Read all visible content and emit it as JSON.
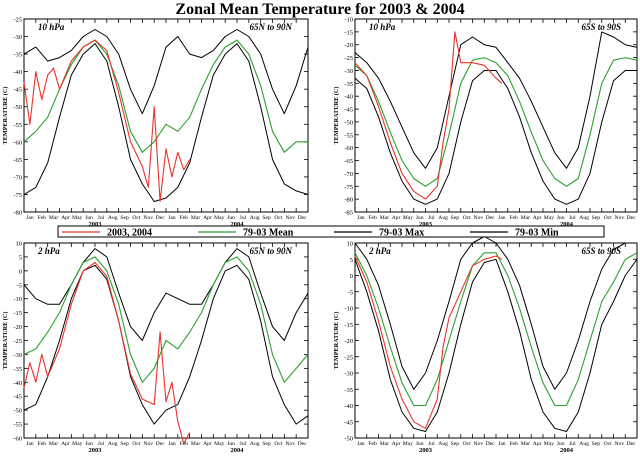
{
  "figure": {
    "title": "Zonal Mean Temperature for 2003 & 2004",
    "legend": [
      {
        "label": "2003, 2004",
        "color": "#e8332c"
      },
      {
        "label": "79-03 Mean",
        "color": "#2ca02c"
      },
      {
        "label": "79-03 Max",
        "color": "#000000"
      },
      {
        "label": "79-03 Min",
        "color": "#000000"
      }
    ]
  },
  "chart_data": [
    {
      "type": "line",
      "level": "10 hPa",
      "region": "65N to 90N",
      "ylabel": "TEMPERATURE (C)",
      "ylim": [
        -80,
        -25
      ],
      "yticks": [
        -80,
        -75,
        -70,
        -65,
        -60,
        -55,
        -50,
        -45,
        -40,
        -35,
        -30,
        -25
      ],
      "month_ticks": [
        "Jan",
        "Feb",
        "Mar",
        "Apr",
        "May",
        "Jun",
        "Jul",
        "Aug",
        "Sep",
        "Oct",
        "Nov",
        "Dec",
        "Jan",
        "Feb",
        "Mar",
        "Apr",
        "May",
        "Jun",
        "Jul",
        "Aug",
        "Sep",
        "Oct",
        "Nov",
        "Dec"
      ],
      "years": [
        "2003",
        "2004"
      ],
      "series": [
        {
          "name": "79-03 Max",
          "color": "#000000",
          "x": [
            0,
            1,
            2,
            3,
            4,
            5,
            6,
            7,
            8,
            9,
            10,
            11,
            12,
            13,
            14,
            15,
            16,
            17,
            18,
            19,
            20,
            21,
            22,
            23,
            24
          ],
          "values": [
            -35,
            -33,
            -37,
            -36,
            -34,
            -30,
            -28,
            -30,
            -35,
            -45,
            -52,
            -44,
            -33,
            -30,
            -35,
            -36,
            -34,
            -30,
            -28,
            -30,
            -35,
            -45,
            -52,
            -44,
            -33
          ]
        },
        {
          "name": "79-03 Mean",
          "color": "#2ca02c",
          "x": [
            0,
            1,
            2,
            3,
            4,
            5,
            6,
            7,
            8,
            9,
            10,
            11,
            12,
            13,
            14,
            15,
            16,
            17,
            18,
            19,
            20,
            21,
            22,
            23,
            24
          ],
          "values": [
            -60,
            -57,
            -53,
            -45,
            -38,
            -33,
            -31,
            -35,
            -44,
            -57,
            -63,
            -60,
            -55,
            -57,
            -53,
            -45,
            -38,
            -33,
            -31,
            -35,
            -44,
            -57,
            -63,
            -60,
            -60
          ]
        },
        {
          "name": "79-03 Min",
          "color": "#000000",
          "x": [
            0,
            1,
            2,
            3,
            4,
            5,
            6,
            7,
            8,
            9,
            10,
            11,
            12,
            13,
            14,
            15,
            16,
            17,
            18,
            19,
            20,
            21,
            22,
            23,
            24
          ],
          "values": [
            -75,
            -73,
            -66,
            -53,
            -41,
            -35,
            -32,
            -37,
            -50,
            -65,
            -72,
            -77,
            -76,
            -73,
            -66,
            -53,
            -41,
            -35,
            -32,
            -37,
            -50,
            -65,
            -72,
            -74,
            -75
          ]
        },
        {
          "name": "2003, 2004",
          "color": "#e8332c",
          "x": [
            0,
            0.5,
            1,
            1.5,
            2,
            2.5,
            3,
            4,
            5,
            6,
            7,
            8,
            9,
            10,
            10.5,
            11,
            11.5,
            12,
            12.5,
            13,
            13.5,
            14
          ],
          "values": [
            -43,
            -55,
            -40,
            -48,
            -41,
            -39,
            -45,
            -37,
            -33,
            -31,
            -34,
            -46,
            -60,
            -67,
            -73,
            -50,
            -77,
            -62,
            -70,
            -63,
            -68,
            -65
          ]
        }
      ]
    },
    {
      "type": "line",
      "level": "10 hPa",
      "region": "65S to 90S",
      "ylabel": "TEMPERATURE (C)",
      "ylim": [
        -85,
        -10
      ],
      "yticks": [
        -85,
        -80,
        -75,
        -70,
        -65,
        -60,
        -55,
        -50,
        -45,
        -40,
        -35,
        -30,
        -25,
        -20,
        -15,
        -10
      ],
      "month_ticks": [
        "Jan",
        "Feb",
        "Mar",
        "Apr",
        "May",
        "Jun",
        "Jul",
        "Aug",
        "Sep",
        "Oct",
        "Nov",
        "Dec",
        "Jan",
        "Feb",
        "Mar",
        "Apr",
        "May",
        "Jun",
        "Jul",
        "Aug",
        "Sep",
        "Oct",
        "Nov",
        "Dec"
      ],
      "years": [
        "2003",
        "2004"
      ],
      "series": [
        {
          "name": "79-03 Max",
          "color": "#000000",
          "x": [
            0,
            1,
            2,
            3,
            4,
            5,
            6,
            7,
            8,
            9,
            10,
            11,
            12,
            13,
            14,
            15,
            16,
            17,
            18,
            19,
            20,
            21,
            22,
            23,
            24
          ],
          "values": [
            -23,
            -27,
            -33,
            -42,
            -52,
            -62,
            -68,
            -60,
            -40,
            -20,
            -17,
            -20,
            -21,
            -27,
            -33,
            -42,
            -52,
            -62,
            -68,
            -60,
            -40,
            -15,
            -17,
            -20,
            -21
          ]
        },
        {
          "name": "79-03 Mean",
          "color": "#2ca02c",
          "x": [
            0,
            1,
            2,
            3,
            4,
            5,
            6,
            7,
            8,
            9,
            10,
            11,
            12,
            13,
            14,
            15,
            16,
            17,
            18,
            19,
            20,
            21,
            22,
            23,
            24
          ],
          "values": [
            -28,
            -32,
            -42,
            -54,
            -65,
            -72,
            -75,
            -72,
            -55,
            -35,
            -26,
            -25,
            -27,
            -32,
            -42,
            -54,
            -65,
            -72,
            -75,
            -72,
            -55,
            -35,
            -26,
            -25,
            -26
          ]
        },
        {
          "name": "79-03 Min",
          "color": "#000000",
          "x": [
            0,
            1,
            2,
            3,
            4,
            5,
            6,
            7,
            8,
            9,
            10,
            11,
            12,
            13,
            14,
            15,
            16,
            17,
            18,
            19,
            20,
            21,
            22,
            23,
            24
          ],
          "values": [
            -33,
            -37,
            -48,
            -62,
            -73,
            -80,
            -82,
            -80,
            -70,
            -50,
            -34,
            -30,
            -30,
            -37,
            -48,
            -62,
            -73,
            -80,
            -82,
            -80,
            -70,
            -50,
            -34,
            -30,
            -30
          ]
        },
        {
          "name": "2003, 2004",
          "color": "#e8332c",
          "x": [
            0,
            1,
            2,
            3,
            4,
            5,
            6,
            7,
            7.5,
            8,
            8.5,
            9,
            10,
            11,
            12,
            12.5
          ],
          "values": [
            -27,
            -32,
            -44,
            -58,
            -70,
            -77,
            -80,
            -75,
            -58,
            -45,
            -15,
            -27,
            -27,
            -28,
            -33,
            -35
          ]
        }
      ]
    },
    {
      "type": "line",
      "level": "2 hPa",
      "region": "65N to 90N",
      "ylabel": "TEMPERATURE (C)",
      "ylim": [
        -60,
        10
      ],
      "yticks": [
        -60,
        -55,
        -50,
        -45,
        -40,
        -35,
        -30,
        -25,
        -20,
        -15,
        -10,
        -5,
        0,
        5,
        10
      ],
      "month_ticks": [
        "Jan",
        "Feb",
        "Mar",
        "Apr",
        "May",
        "Jun",
        "Jul",
        "Aug",
        "Sep",
        "Oct",
        "Nov",
        "Dec",
        "Jan",
        "Feb",
        "Mar",
        "Apr",
        "May",
        "Jun",
        "Jul",
        "Aug",
        "Sep",
        "Oct",
        "Nov",
        "Dec"
      ],
      "years": [
        "2003",
        "2004"
      ],
      "series": [
        {
          "name": "79-03 Max",
          "color": "#000000",
          "x": [
            0,
            1,
            2,
            3,
            4,
            5,
            6,
            7,
            8,
            9,
            10,
            11,
            12,
            13,
            14,
            15,
            16,
            17,
            18,
            19,
            20,
            21,
            22,
            23,
            24
          ],
          "values": [
            -5,
            -10,
            -12,
            -12,
            -5,
            3,
            8,
            5,
            -8,
            -20,
            -25,
            -15,
            -8,
            -10,
            -12,
            -12,
            -5,
            3,
            8,
            5,
            -8,
            -20,
            -25,
            -15,
            -8
          ]
        },
        {
          "name": "79-03 Mean",
          "color": "#2ca02c",
          "x": [
            0,
            1,
            2,
            3,
            4,
            5,
            6,
            7,
            8,
            9,
            10,
            11,
            12,
            13,
            14,
            15,
            16,
            17,
            18,
            19,
            20,
            21,
            22,
            23,
            24
          ],
          "values": [
            -30,
            -28,
            -22,
            -15,
            -5,
            3,
            5,
            0,
            -12,
            -30,
            -40,
            -35,
            -25,
            -28,
            -22,
            -15,
            -5,
            3,
            5,
            0,
            -12,
            -30,
            -40,
            -35,
            -30
          ]
        },
        {
          "name": "79-03 Min",
          "color": "#000000",
          "x": [
            0,
            1,
            2,
            3,
            4,
            5,
            6,
            7,
            8,
            9,
            10,
            11,
            12,
            13,
            14,
            15,
            16,
            17,
            18,
            19,
            20,
            21,
            22,
            23,
            24
          ],
          "values": [
            -50,
            -48,
            -38,
            -25,
            -10,
            0,
            2,
            -3,
            -18,
            -38,
            -48,
            -55,
            -50,
            -48,
            -38,
            -25,
            -10,
            0,
            2,
            -3,
            -18,
            -38,
            -48,
            -55,
            -52
          ]
        },
        {
          "name": "2003, 2004",
          "color": "#e8332c",
          "x": [
            0,
            0.5,
            1,
            1.5,
            2,
            3,
            4,
            5,
            6,
            7,
            8,
            9,
            10,
            11,
            11.5,
            12,
            12.5,
            13,
            13.5,
            14
          ],
          "values": [
            -42,
            -33,
            -40,
            -30,
            -38,
            -28,
            -12,
            0,
            3,
            -2,
            -18,
            -37,
            -46,
            -48,
            -22,
            -47,
            -40,
            -54,
            -62,
            -58
          ]
        }
      ]
    },
    {
      "type": "line",
      "level": "2 hPa",
      "region": "65S to 90S",
      "ylabel": "TEMPERATURE (C)",
      "ylim": [
        -50,
        10
      ],
      "yticks": [
        -50,
        -45,
        -40,
        -35,
        -30,
        -25,
        -20,
        -15,
        -10,
        -5,
        0,
        5,
        10
      ],
      "month_ticks": [
        "Jan",
        "Feb",
        "Mar",
        "Apr",
        "May",
        "Jun",
        "Jul",
        "Aug",
        "Sep",
        "Oct",
        "Nov",
        "Dec",
        "Jan",
        "Feb",
        "Mar",
        "Apr",
        "May",
        "Jun",
        "Jul",
        "Aug",
        "Sep",
        "Oct",
        "Nov",
        "Dec"
      ],
      "years": [
        "2003",
        "2004"
      ],
      "series": [
        {
          "name": "79-03 Max",
          "color": "#000000",
          "x": [
            0,
            1,
            2,
            3,
            4,
            5,
            6,
            7,
            8,
            9,
            10,
            11,
            12,
            13,
            14,
            15,
            16,
            17,
            18,
            19,
            20,
            21,
            22,
            23,
            24
          ],
          "values": [
            10,
            5,
            -3,
            -15,
            -28,
            -35,
            -30,
            -20,
            -8,
            5,
            10,
            12,
            10,
            5,
            -3,
            -15,
            -28,
            -35,
            -30,
            -20,
            -8,
            2,
            8,
            10,
            10
          ]
        },
        {
          "name": "79-03 Mean",
          "color": "#2ca02c",
          "x": [
            0,
            1,
            2,
            3,
            4,
            5,
            6,
            7,
            8,
            9,
            10,
            11,
            12,
            13,
            14,
            15,
            16,
            17,
            18,
            19,
            20,
            21,
            22,
            23,
            24
          ],
          "values": [
            7,
            0,
            -10,
            -22,
            -33,
            -40,
            -40,
            -32,
            -20,
            -8,
            3,
            7,
            7,
            0,
            -10,
            -22,
            -33,
            -40,
            -40,
            -32,
            -20,
            -8,
            -2,
            5,
            7
          ]
        },
        {
          "name": "79-03 Min",
          "color": "#000000",
          "x": [
            0,
            1,
            2,
            3,
            4,
            5,
            6,
            7,
            8,
            9,
            10,
            11,
            12,
            13,
            14,
            15,
            16,
            17,
            18,
            19,
            20,
            21,
            22,
            23,
            24
          ],
          "values": [
            5,
            -5,
            -17,
            -32,
            -42,
            -47,
            -48,
            -42,
            -30,
            -15,
            -2,
            4,
            5,
            -5,
            -17,
            -32,
            -42,
            -47,
            -48,
            -42,
            -30,
            -15,
            -8,
            0,
            5
          ]
        },
        {
          "name": "2003, 2004",
          "color": "#e8332c",
          "x": [
            0,
            1,
            2,
            3,
            4,
            5,
            6,
            7,
            7.5,
            8,
            9,
            10,
            11,
            12,
            12.5
          ],
          "values": [
            6,
            -2,
            -14,
            -28,
            -38,
            -45,
            -47,
            -38,
            -22,
            -13,
            -5,
            3,
            5,
            6,
            5
          ]
        }
      ]
    }
  ]
}
